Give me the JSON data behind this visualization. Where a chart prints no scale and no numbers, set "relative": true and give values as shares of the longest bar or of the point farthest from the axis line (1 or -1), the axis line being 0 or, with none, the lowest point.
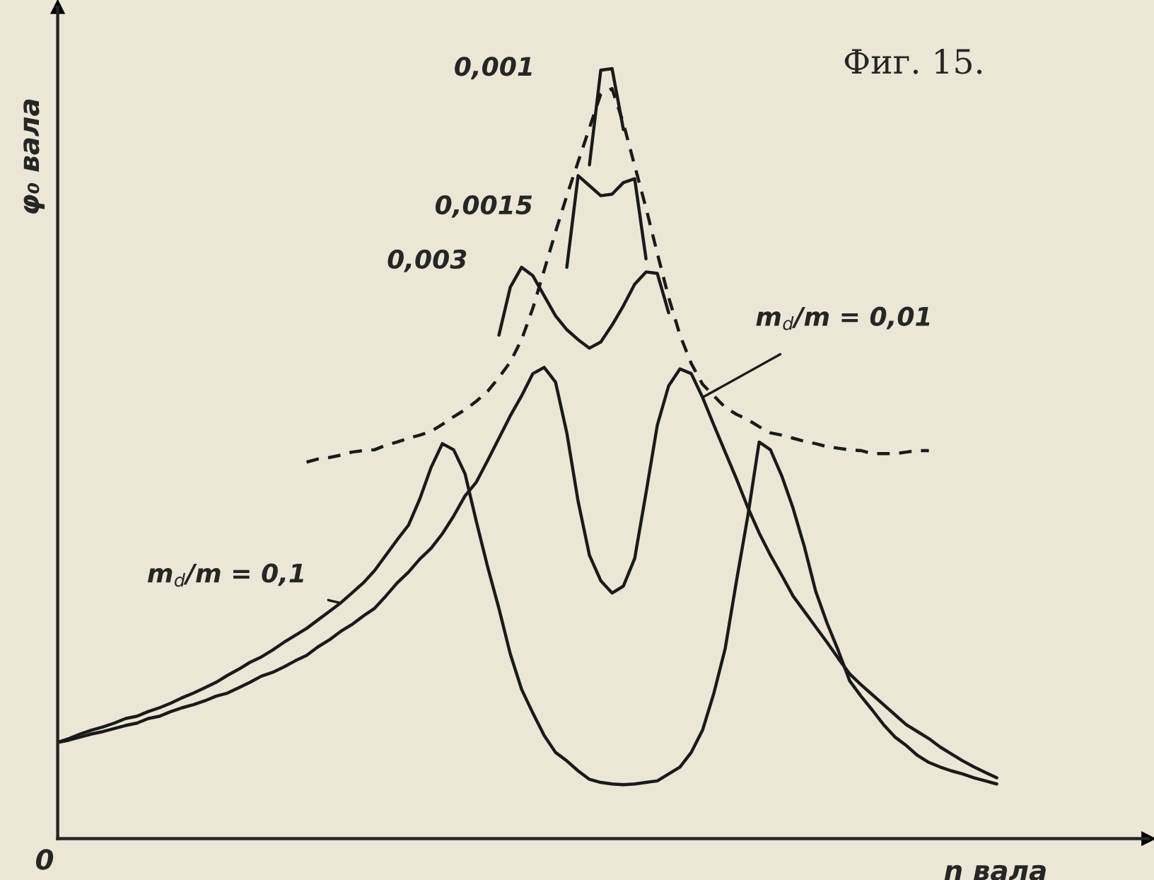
{
  "chart_data": {
    "type": "line",
    "relative": true,
    "title": "Фиг. 15.",
    "xlabel": "n вала",
    "ylabel": "φ₀ вала",
    "annotations": [
      "0"
    ],
    "line_style": "solid",
    "marker": "none",
    "categories": [
      null,
      null,
      null,
      null,
      null,
      null,
      null,
      null,
      null,
      null,
      null,
      null,
      null,
      null,
      null,
      null,
      null,
      null,
      null,
      null,
      null,
      null,
      null,
      null,
      null,
      null,
      null,
      null,
      null,
      null,
      null,
      null,
      null,
      null,
      null,
      null,
      null,
      null,
      null,
      null,
      null,
      null,
      null,
      null,
      null,
      null,
      null,
      null,
      null,
      null,
      null,
      null,
      null,
      null,
      null,
      null,
      null,
      null,
      null,
      null,
      null,
      null,
      null,
      null,
      null,
      null,
      null,
      null,
      null,
      null,
      null,
      null,
      null,
      null,
      null,
      null,
      null,
      null,
      null,
      null,
      null,
      null,
      null,
      null,
      null
    ],
    "series": [
      {
        "name": "m$_{d}$/m = 0,1",
        "color": "#1a1a1a",
        "values": [
          0.125,
          0.13,
          0.136,
          0.141,
          0.145,
          0.15,
          0.156,
          0.159,
          0.165,
          0.17,
          0.176,
          0.183,
          0.189,
          0.196,
          0.203,
          0.212,
          0.22,
          0.229,
          0.236,
          0.245,
          0.255,
          0.264,
          0.273,
          0.284,
          0.295,
          0.306,
          0.319,
          0.332,
          0.348,
          0.368,
          0.388,
          0.407,
          0.441,
          0.482,
          0.513,
          0.505,
          0.474,
          0.412,
          0.353,
          0.299,
          0.24,
          0.194,
          0.163,
          0.134,
          0.112,
          0.101,
          0.088,
          0.077,
          0.073,
          0.071,
          0.07,
          0.071,
          0.073,
          0.075,
          0.084,
          0.093,
          0.112,
          0.141,
          0.189,
          0.247,
          0.335,
          0.419,
          0.515,
          0.505,
          0.471,
          0.429,
          0.379,
          0.321,
          0.28,
          0.244,
          0.205,
          0.185,
          0.167,
          0.148,
          0.132,
          0.121,
          0.108,
          0.099,
          0.093,
          0.088,
          0.084,
          0.079,
          0.075,
          0.071,
          null
        ]
      },
      {
        "name": "m$_{d}$/m = 0,01",
        "color": "#1a1a1a",
        "values": [
          0.125,
          0.128,
          0.132,
          0.136,
          0.139,
          0.143,
          0.147,
          0.15,
          0.156,
          0.159,
          0.165,
          0.17,
          0.174,
          0.179,
          0.185,
          0.189,
          0.196,
          0.203,
          0.211,
          0.216,
          0.223,
          0.231,
          0.238,
          0.249,
          0.258,
          0.269,
          0.278,
          0.289,
          0.299,
          0.315,
          0.332,
          0.346,
          0.363,
          0.377,
          0.396,
          0.419,
          0.445,
          0.463,
          0.491,
          0.52,
          0.549,
          0.575,
          0.604,
          0.612,
          0.593,
          0.527,
          0.438,
          0.368,
          0.335,
          0.319,
          0.328,
          0.364,
          0.449,
          0.537,
          0.588,
          0.61,
          0.604,
          0.573,
          0.537,
          0.502,
          0.467,
          0.43,
          0.397,
          0.368,
          0.342,
          0.315,
          0.295,
          0.275,
          0.255,
          0.234,
          0.214,
          0.2,
          0.187,
          0.174,
          0.161,
          0.148,
          0.139,
          0.13,
          0.119,
          0.11,
          0.101,
          0.093,
          0.086,
          0.079,
          null
        ]
      },
      {
        "name": "0,003",
        "color": "#1a1a1a",
        "values": [
          null,
          null,
          null,
          null,
          null,
          null,
          null,
          null,
          null,
          null,
          null,
          null,
          null,
          null,
          null,
          null,
          null,
          null,
          null,
          null,
          null,
          null,
          null,
          null,
          null,
          null,
          null,
          null,
          null,
          null,
          null,
          null,
          null,
          null,
          null,
          null,
          null,
          null,
          null,
          0.654,
          0.716,
          0.742,
          0.731,
          0.705,
          0.679,
          0.661,
          0.648,
          0.637,
          0.645,
          0.667,
          0.692,
          0.72,
          0.736,
          0.734,
          0.683,
          null,
          null,
          null,
          null,
          null,
          null,
          null,
          null,
          null,
          null,
          null,
          null,
          null,
          null,
          null,
          null,
          null,
          null,
          null,
          null,
          null,
          null,
          null,
          null,
          null,
          null,
          null,
          null,
          null,
          null
        ]
      },
      {
        "name": "0,0015",
        "color": "#1a1a1a",
        "values": [
          null,
          null,
          null,
          null,
          null,
          null,
          null,
          null,
          null,
          null,
          null,
          null,
          null,
          null,
          null,
          null,
          null,
          null,
          null,
          null,
          null,
          null,
          null,
          null,
          null,
          null,
          null,
          null,
          null,
          null,
          null,
          null,
          null,
          null,
          null,
          null,
          null,
          null,
          null,
          null,
          null,
          null,
          null,
          null,
          null,
          0.742,
          0.861,
          0.848,
          0.835,
          0.837,
          0.852,
          0.857,
          0.753,
          null,
          null,
          null,
          null,
          null,
          null,
          null,
          null,
          null,
          null,
          null,
          null,
          null,
          null,
          null,
          null,
          null,
          null,
          null,
          null,
          null,
          null,
          null,
          null,
          null,
          null,
          null,
          null,
          null,
          null,
          null,
          null
        ]
      },
      {
        "name": "0,001",
        "color": "#1a1a1a",
        "values": [
          null,
          null,
          null,
          null,
          null,
          null,
          null,
          null,
          null,
          null,
          null,
          null,
          null,
          null,
          null,
          null,
          null,
          null,
          null,
          null,
          null,
          null,
          null,
          null,
          null,
          null,
          null,
          null,
          null,
          null,
          null,
          null,
          null,
          null,
          null,
          null,
          null,
          null,
          null,
          null,
          null,
          null,
          null,
          null,
          null,
          null,
          null,
          0.875,
          0.998,
          1,
          0.921,
          null,
          null,
          null,
          null,
          null,
          null,
          null,
          null,
          null,
          null,
          null,
          null,
          null,
          null,
          null,
          null,
          null,
          null,
          null,
          null,
          null,
          null,
          null,
          null,
          null,
          null,
          null,
          null,
          null,
          null,
          null,
          null,
          null,
          null
        ]
      },
      {
        "color": "#1a1a1a",
        "line_style": "dashed",
        "values": [
          null,
          null,
          null,
          null,
          null,
          null,
          null,
          null,
          null,
          null,
          null,
          null,
          null,
          null,
          null,
          null,
          null,
          null,
          null,
          null,
          null,
          null,
          0.489,
          0.493,
          0.495,
          0.498,
          0.502,
          0.504,
          0.505,
          0.511,
          0.515,
          0.52,
          0.524,
          0.529,
          0.538,
          0.548,
          0.557,
          0.568,
          0.581,
          0.599,
          0.619,
          0.648,
          0.689,
          0.738,
          0.788,
          0.835,
          0.879,
          0.923,
          0.967,
          0.974,
          0.929,
          0.874,
          0.819,
          0.76,
          0.703,
          0.654,
          0.617,
          0.59,
          0.575,
          0.56,
          0.551,
          0.544,
          0.535,
          0.527,
          0.524,
          0.52,
          0.516,
          0.513,
          0.509,
          0.507,
          0.505,
          0.504,
          0.5,
          0.5,
          0.5,
          0.502,
          0.504,
          0.504,
          null,
          null,
          null,
          null,
          null,
          null,
          null
        ]
      }
    ]
  }
}
